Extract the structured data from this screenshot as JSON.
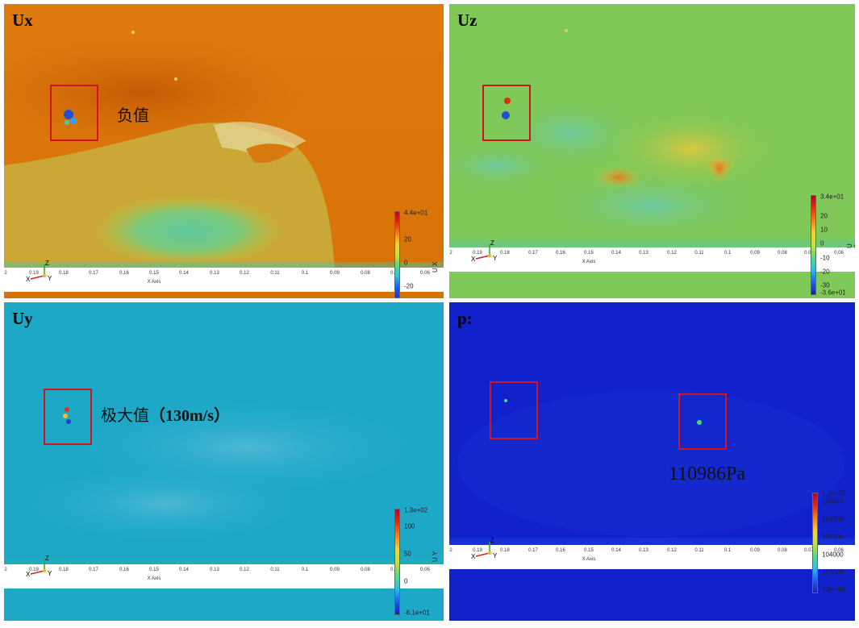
{
  "panels": {
    "ux": {
      "title": "Ux",
      "annotation": "负值",
      "colorbar": {
        "title": "U X",
        "labels": [
          "4.4e+01",
          "20",
          "0",
          "-20"
        ]
      }
    },
    "uz": {
      "title": "Uz",
      "colorbar": {
        "title": "U Z",
        "labels": [
          "3.4e+01",
          "20",
          "10",
          "0",
          "-10",
          "-20",
          "-30",
          "-3.6e+01"
        ]
      }
    },
    "uy": {
      "title": "Uy",
      "annotation_main": "极大值",
      "annotation_paren": "（130m/s）",
      "colorbar": {
        "title": "U Y",
        "labels": [
          "1.3e+02",
          "100",
          "50",
          "0",
          "-6.1e+01"
        ]
      }
    },
    "p": {
      "title": "p:",
      "annotation": "110986Pa",
      "colorbar": {
        "labels": [
          "1.1e+05",
          "110000",
          "108000",
          "106000",
          "104000",
          "102000",
          "1.0e+05"
        ]
      }
    }
  },
  "x_axis": {
    "title": "X Axis",
    "ticks": [
      "2",
      "0.19",
      "0.18",
      "0.17",
      "0.16",
      "0.15",
      "0.14",
      "0.13",
      "0.12",
      "0.11",
      "0.1",
      "0.09",
      "0.08",
      "0.07",
      "0.06"
    ]
  },
  "triad": {
    "x": "X",
    "y": "Y",
    "z": "Z"
  },
  "colors": {
    "marker": "#d0151f"
  }
}
